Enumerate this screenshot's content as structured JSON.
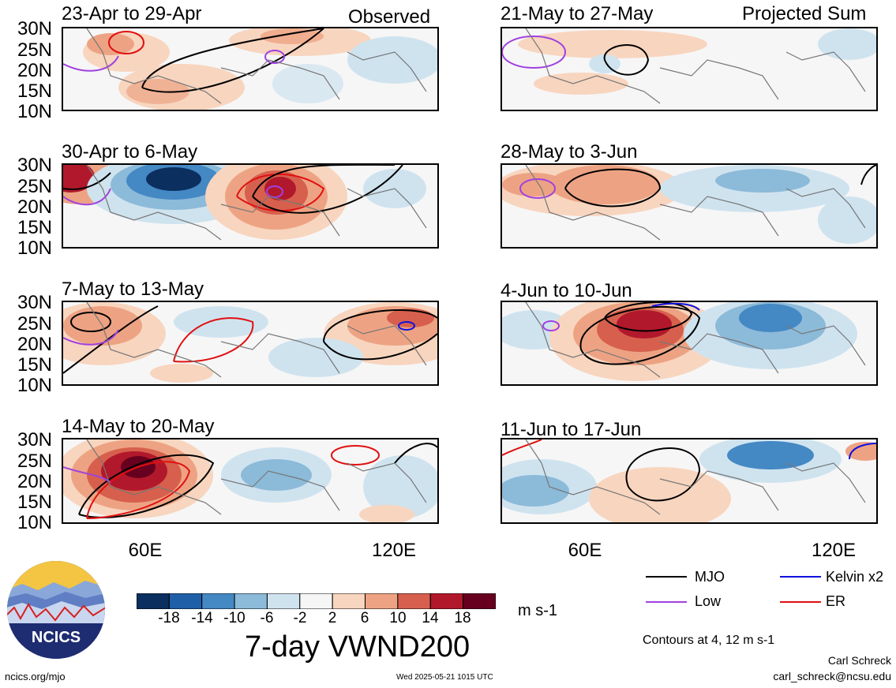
{
  "header": {
    "observed_label": "Observed",
    "projected_label": "Projected Sum"
  },
  "panels": [
    {
      "title": "23-Apr to 29-Apr",
      "column": "left",
      "row": 0
    },
    {
      "title": "30-Apr to 6-May",
      "column": "left",
      "row": 1
    },
    {
      "title": "7-May to 13-May",
      "column": "left",
      "row": 2
    },
    {
      "title": "14-May to 20-May",
      "column": "left",
      "row": 3
    },
    {
      "title": "21-May to 27-May",
      "column": "right",
      "row": 0
    },
    {
      "title": "28-May to 3-Jun",
      "column": "right",
      "row": 1
    },
    {
      "title": "4-Jun to 10-Jun",
      "column": "right",
      "row": 2
    },
    {
      "title": "11-Jun to 17-Jun",
      "column": "right",
      "row": 3
    }
  ],
  "axes": {
    "lat_labels": [
      "30N",
      "25N",
      "20N",
      "15N",
      "10N"
    ],
    "lon_labels": [
      "60E",
      "120E"
    ]
  },
  "colorbar": {
    "tick_labels": [
      "-18",
      "-14",
      "-10",
      "-6",
      "-2",
      "2",
      "6",
      "10",
      "14",
      "18"
    ],
    "colors": [
      "#0b2f5e",
      "#1f5fa8",
      "#4488c4",
      "#8cbad9",
      "#cfe3ef",
      "#f6f6f6",
      "#f8d5bf",
      "#eda383",
      "#d6604d",
      "#b2182b",
      "#67001f"
    ],
    "units": "m s-1",
    "title": "7-day VWND200"
  },
  "legend": {
    "items": [
      {
        "label": "MJO",
        "color": "#000000"
      },
      {
        "label": "Kelvin x2",
        "color": "#1010e0"
      },
      {
        "label": "Low",
        "color": "#a040e0"
      },
      {
        "label": "ER",
        "color": "#e01010"
      }
    ],
    "contours_note": "Contours at 4, 12 m s-1"
  },
  "footer": {
    "author": "Carl Schreck",
    "email": "carl_schreck@ncsu.edu",
    "site": "ncics.org/mjo",
    "timestamp": "Wed 2025-05-21 1015 UTC"
  },
  "logo": {
    "text": "NCICS"
  }
}
